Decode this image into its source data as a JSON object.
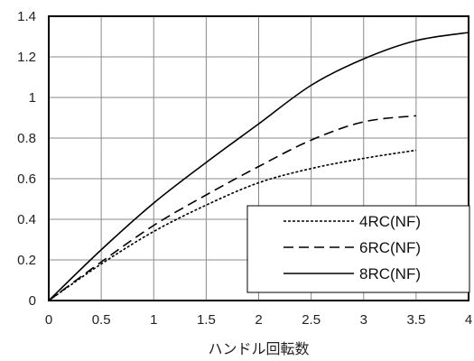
{
  "chart_data": {
    "type": "line",
    "xlabel": "ハンドル回転数",
    "ylabel": "",
    "xlim": [
      0,
      4
    ],
    "ylim": [
      0,
      1.4
    ],
    "x_ticks": [
      "0",
      "0.5",
      "1",
      "1.5",
      "2",
      "2.5",
      "3",
      "3.5",
      "4"
    ],
    "y_ticks": [
      "0",
      "0.2",
      "0.4",
      "0.6",
      "0.8",
      "1",
      "1.2",
      "1.4"
    ],
    "grid": true,
    "legend_position": "bottom-right",
    "series": [
      {
        "name": "4RC(NF)",
        "style": "dotted",
        "x": [
          0,
          0.5,
          1,
          1.5,
          2,
          2.5,
          3,
          3.5
        ],
        "y": [
          0,
          0.18,
          0.34,
          0.47,
          0.58,
          0.65,
          0.7,
          0.74
        ]
      },
      {
        "name": "6RC(NF)",
        "style": "dashed",
        "x": [
          0,
          0.5,
          1,
          1.5,
          2,
          2.5,
          3,
          3.5
        ],
        "y": [
          0,
          0.19,
          0.37,
          0.52,
          0.66,
          0.79,
          0.88,
          0.91
        ]
      },
      {
        "name": "8RC(NF)",
        "style": "solid",
        "x": [
          0,
          0.5,
          1,
          1.5,
          2,
          2.5,
          3,
          3.5,
          4
        ],
        "y": [
          0,
          0.25,
          0.48,
          0.68,
          0.87,
          1.06,
          1.19,
          1.28,
          1.32
        ]
      }
    ]
  }
}
